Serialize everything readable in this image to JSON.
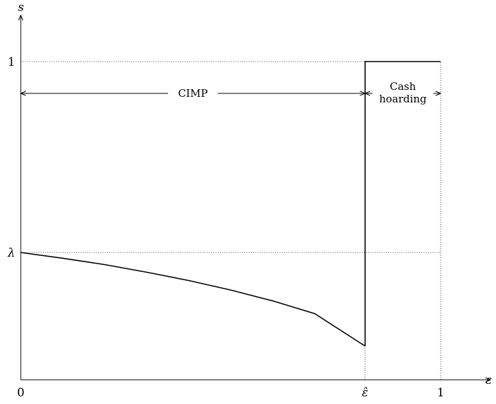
{
  "chart_data": {
    "type": "line",
    "title": "",
    "xlabel": "ε",
    "ylabel": "s",
    "xlim": [
      0,
      1.02
    ],
    "ylim": [
      0,
      1.1
    ],
    "xticks": [
      {
        "value": 0,
        "label": "0"
      },
      {
        "value": 0.82,
        "label": "ε̂"
      },
      {
        "value": 1,
        "label": "1"
      }
    ],
    "yticks": [
      {
        "value": 1,
        "label": "1"
      },
      {
        "value": 0.4,
        "label": "λ"
      }
    ],
    "reference_lines": [
      {
        "orientation": "horizontal",
        "value": 1,
        "style": "dotted"
      },
      {
        "orientation": "horizontal",
        "value": 0.4,
        "style": "dotted"
      },
      {
        "orientation": "vertical",
        "value": 0.82,
        "style": "dotted"
      },
      {
        "orientation": "vertical",
        "value": 1,
        "style": "dotted"
      }
    ],
    "series": [
      {
        "x": [
          0,
          0.1,
          0.2,
          0.3,
          0.4,
          0.5,
          0.6,
          0.7,
          0.82
        ],
        "y": [
          0.4,
          0.382,
          0.362,
          0.338,
          0.312,
          0.282,
          0.248,
          0.208,
          0.106
        ]
      },
      {
        "x": [
          0.82,
          0.82,
          1
        ],
        "y": [
          0.106,
          1,
          1
        ]
      }
    ],
    "annotations": [
      {
        "text": "CIMP",
        "x_from": 0,
        "x_to": 0.82,
        "y": 0.9,
        "type": "double-arrow"
      },
      {
        "lines": [
          "Cash",
          "hoarding"
        ],
        "x_from": 0.82,
        "x_to": 1,
        "y": 0.9,
        "type": "double-arrow"
      }
    ],
    "grid": false,
    "legend": "none"
  }
}
